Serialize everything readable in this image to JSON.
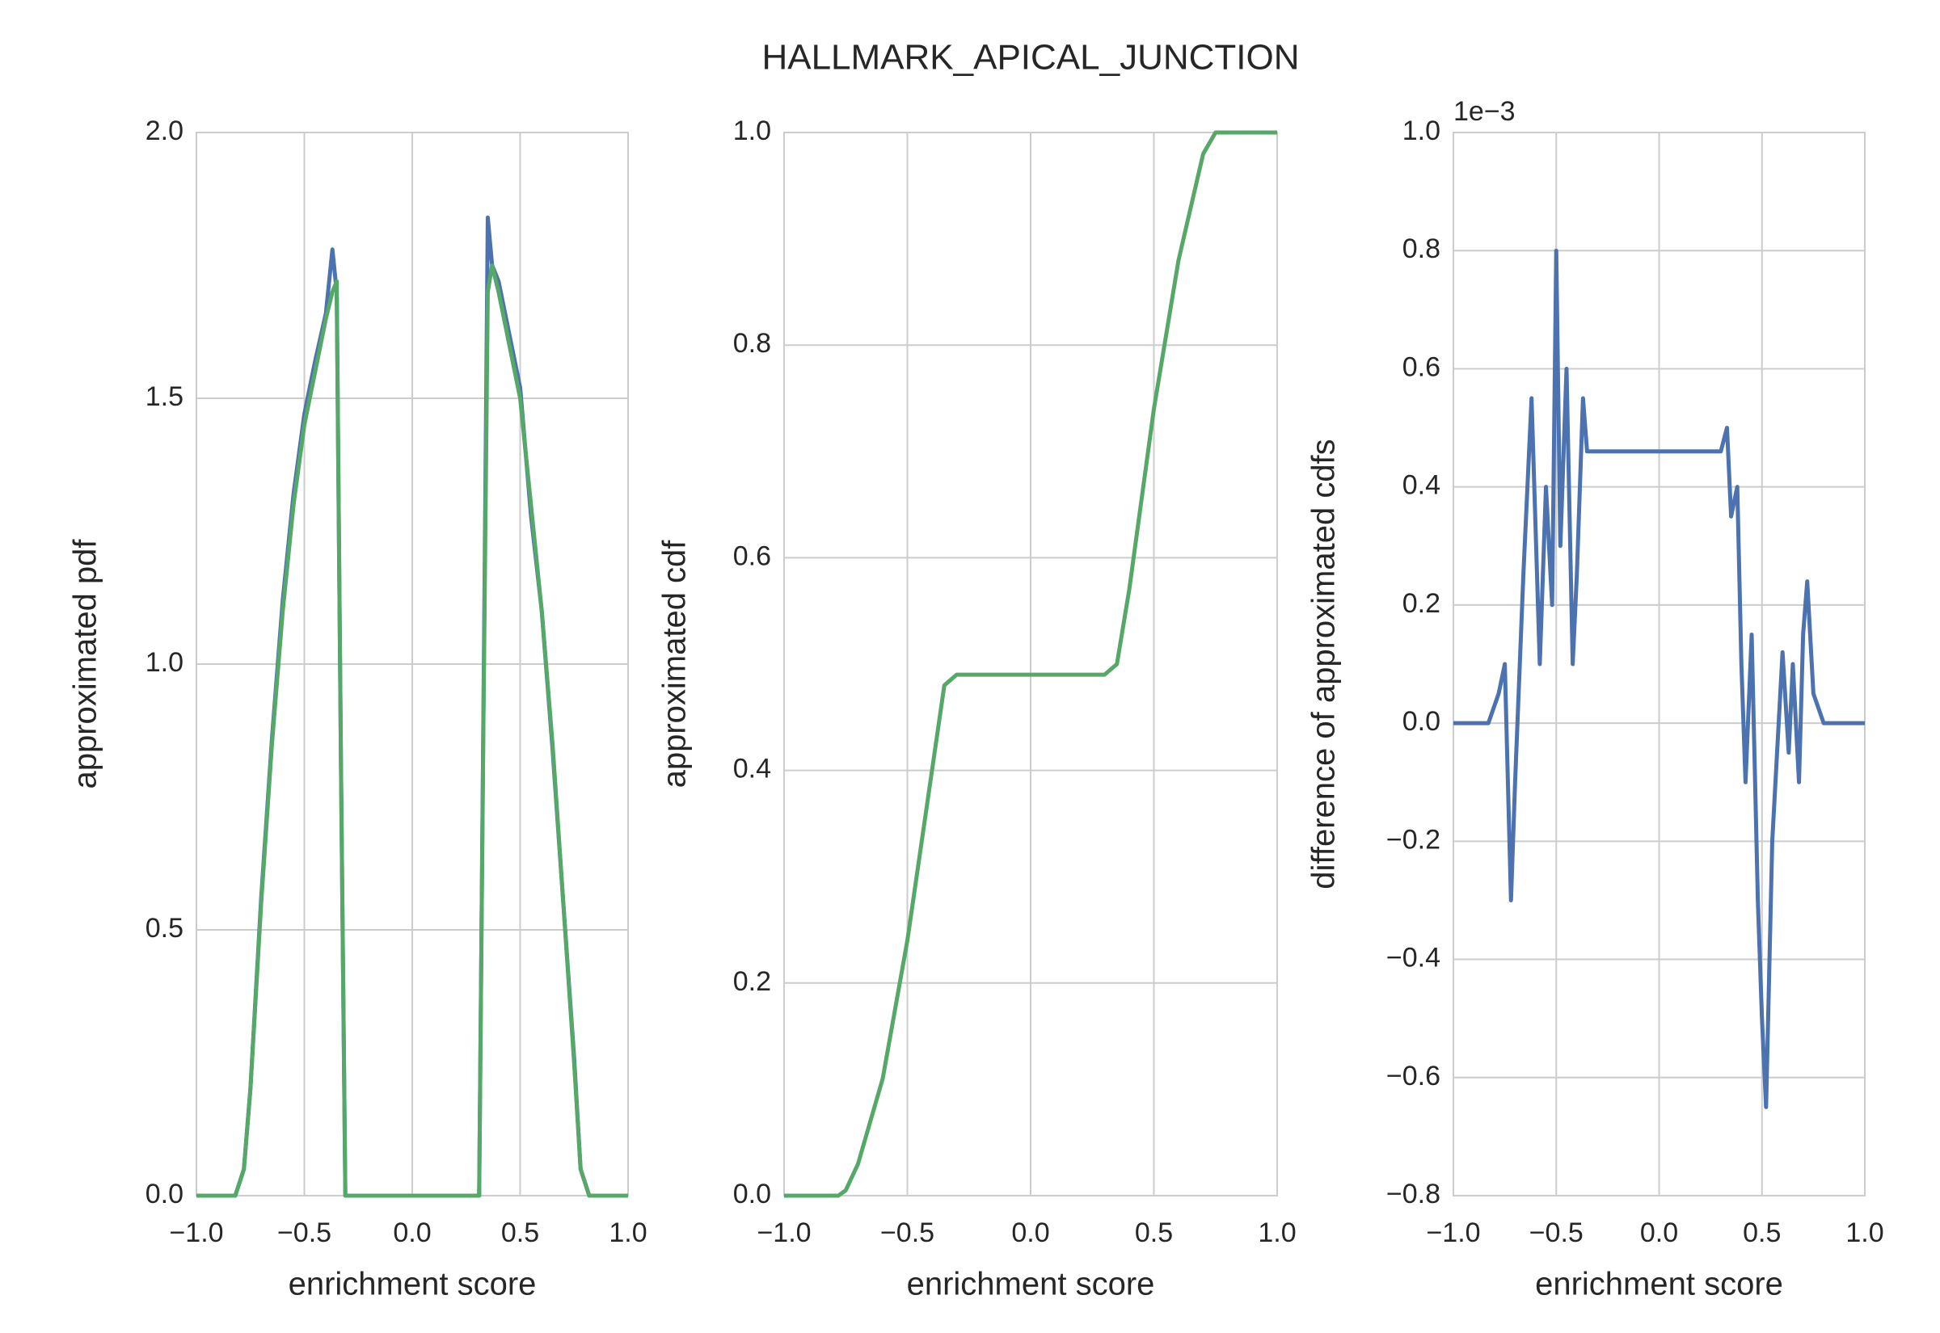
{
  "title": "HALLMARK_APICAL_JUNCTION",
  "chart_data": [
    {
      "type": "line",
      "xlabel": "enrichment score",
      "ylabel": "approximated pdf",
      "x": [
        -1,
        -0.82,
        -0.78,
        -0.75,
        -0.7,
        -0.65,
        -0.6,
        -0.55,
        -0.5,
        -0.45,
        -0.4,
        -0.37,
        -0.35,
        -0.33,
        -0.31,
        0.31,
        0.33,
        0.35,
        0.37,
        0.4,
        0.45,
        0.5,
        0.55,
        0.6,
        0.65,
        0.7,
        0.75,
        0.78,
        0.82,
        1
      ],
      "series": [
        {
          "color": "#4c72b0",
          "values": [
            0,
            0,
            0.05,
            0.2,
            0.56,
            0.86,
            1.12,
            1.32,
            1.47,
            1.57,
            1.66,
            1.78,
            1.7,
            0.8,
            0,
            0,
            0.92,
            1.84,
            1.75,
            1.72,
            1.62,
            1.52,
            1.28,
            1.1,
            0.84,
            0.55,
            0.26,
            0.05,
            0,
            0
          ]
        },
        {
          "color": "#55a868",
          "values": [
            0,
            0,
            0.05,
            0.2,
            0.55,
            0.85,
            1.1,
            1.3,
            1.45,
            1.55,
            1.65,
            1.7,
            1.72,
            0.8,
            0,
            0,
            0.9,
            1.7,
            1.75,
            1.7,
            1.6,
            1.5,
            1.3,
            1.1,
            0.85,
            0.55,
            0.25,
            0.05,
            0,
            0
          ]
        }
      ],
      "xlim": [
        -1,
        1
      ],
      "ylim": [
        0,
        2
      ],
      "xticks": [
        {
          "value": -1,
          "label": "−1.0"
        },
        {
          "value": -0.5,
          "label": "−0.5"
        },
        {
          "value": 0,
          "label": "0.0"
        },
        0.5,
        {
          "value": 1,
          "label": "1.0"
        }
      ],
      "yticks": [
        {
          "value": 0,
          "label": "0.0"
        },
        0.5,
        {
          "value": 1,
          "label": "1.0"
        },
        1.5,
        {
          "value": 2,
          "label": "2.0"
        }
      ],
      "grid": true
    },
    {
      "type": "line",
      "xlabel": "enrichment score",
      "ylabel": "approximated cdf",
      "x": [
        -1,
        -0.78,
        -0.75,
        -0.7,
        -0.6,
        -0.5,
        -0.4,
        -0.35,
        -0.3,
        0,
        0.3,
        0.35,
        0.4,
        0.5,
        0.6,
        0.7,
        0.75,
        1
      ],
      "series": [
        {
          "color": "#55a868",
          "values": [
            0,
            0,
            0.005,
            0.03,
            0.11,
            0.24,
            0.4,
            0.48,
            0.49,
            0.49,
            0.49,
            0.5,
            0.57,
            0.74,
            0.88,
            0.98,
            1,
            1
          ]
        }
      ],
      "xlim": [
        -1,
        1
      ],
      "ylim": [
        0,
        1
      ],
      "xticks": [
        {
          "value": -1,
          "label": "−1.0"
        },
        {
          "value": -0.5,
          "label": "−0.5"
        },
        {
          "value": 0,
          "label": "0.0"
        },
        0.5,
        {
          "value": 1,
          "label": "1.0"
        }
      ],
      "yticks": [
        {
          "value": 0,
          "label": "0.0"
        },
        0.2,
        0.4,
        0.6,
        0.8,
        {
          "value": 1,
          "label": "1.0"
        }
      ],
      "grid": true
    },
    {
      "type": "line",
      "xlabel": "enrichment score",
      "ylabel": "difference of approximated cdfs",
      "offset_label": "1e−3",
      "x": [
        -1,
        -0.83,
        -0.78,
        -0.75,
        -0.72,
        -0.7,
        -0.66,
        -0.62,
        -0.58,
        -0.55,
        -0.52,
        -0.5,
        -0.48,
        -0.45,
        -0.42,
        -0.4,
        -0.37,
        -0.35,
        0.3,
        0.33,
        0.35,
        0.38,
        0.4,
        0.42,
        0.45,
        0.48,
        0.5,
        0.52,
        0.55,
        0.6,
        0.63,
        0.65,
        0.68,
        0.7,
        0.72,
        0.75,
        0.8,
        1
      ],
      "series": [
        {
          "color": "#4c72b0",
          "values": [
            0,
            0,
            0.05,
            0.1,
            -0.3,
            -0.1,
            0.25,
            0.55,
            0.1,
            0.4,
            0.2,
            0.8,
            0.3,
            0.6,
            0.1,
            0.25,
            0.55,
            0.46,
            0.46,
            0.5,
            0.35,
            0.4,
            0.1,
            -0.1,
            0.15,
            -0.3,
            -0.5,
            -0.65,
            -0.2,
            0.12,
            -0.05,
            0.1,
            -0.1,
            0.15,
            0.24,
            0.05,
            0,
            0
          ]
        }
      ],
      "xlim": [
        -1,
        1
      ],
      "ylim": [
        -0.8,
        1
      ],
      "xticks": [
        {
          "value": -1,
          "label": "−1.0"
        },
        {
          "value": -0.5,
          "label": "−0.5"
        },
        {
          "value": 0,
          "label": "0.0"
        },
        0.5,
        {
          "value": 1,
          "label": "1.0"
        }
      ],
      "yticks": [
        {
          "value": -0.8,
          "label": "−0.8"
        },
        {
          "value": -0.6,
          "label": "−0.6"
        },
        {
          "value": -0.4,
          "label": "−0.4"
        },
        {
          "value": -0.2,
          "label": "−0.2"
        },
        {
          "value": 0,
          "label": "0.0"
        },
        0.2,
        0.4,
        0.6,
        0.8,
        {
          "value": 1,
          "label": "1.0"
        }
      ],
      "grid": true
    }
  ]
}
